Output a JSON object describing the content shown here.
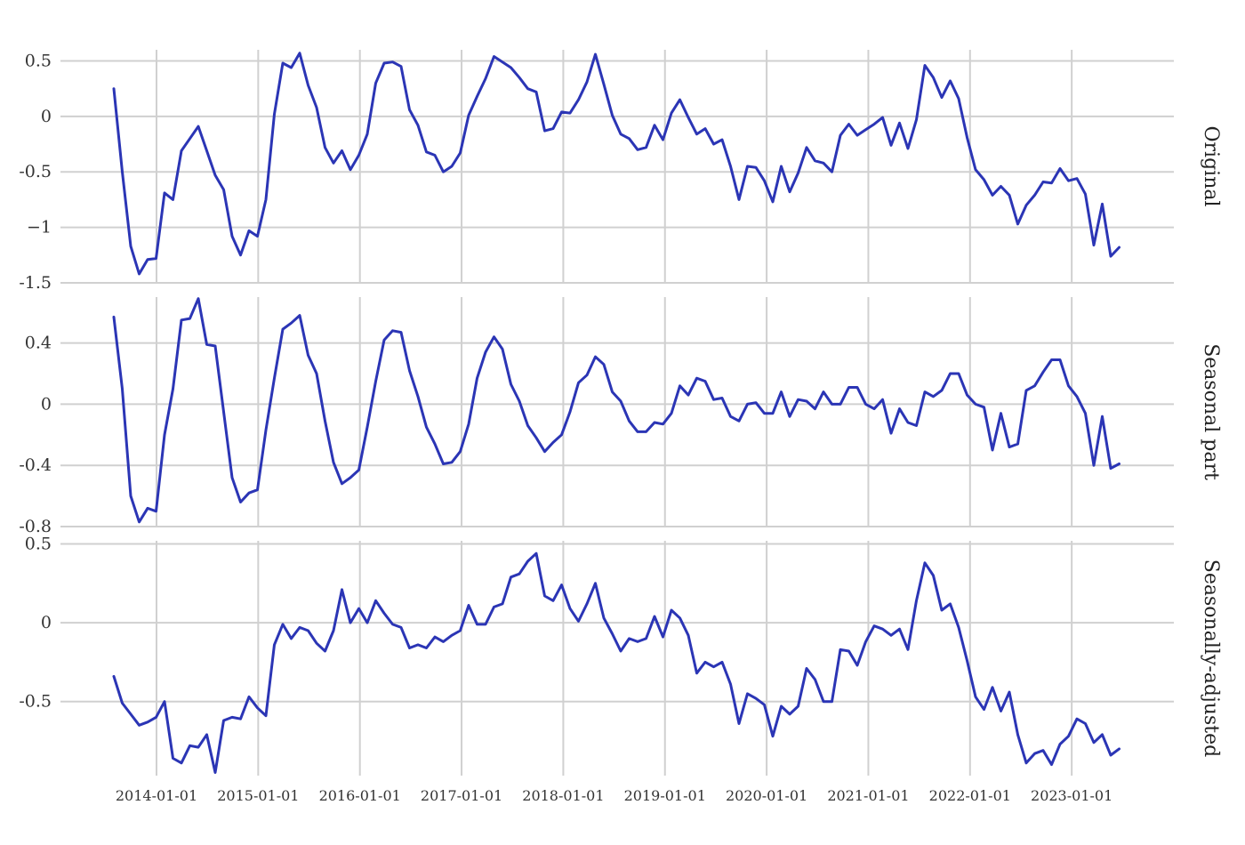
{
  "chart_data": {
    "type": "line",
    "colors": {
      "line": "#2b35b5",
      "grid": "#d0d0d0"
    },
    "grid": true,
    "x_start": "2013-08-01",
    "x_step": "1 month",
    "x_tick_labels": [
      "2014-01-01",
      "2015-01-01",
      "2016-01-01",
      "2017-01-01",
      "2018-01-01",
      "2019-01-01",
      "2020-01-01",
      "2021-01-01",
      "2022-01-01",
      "2023-01-01"
    ],
    "panels": [
      {
        "facet_label": "Original",
        "ylim": [
          -1.5,
          0.6
        ],
        "y_ticks": [
          0.5,
          0,
          -0.5,
          -1,
          -1.5
        ],
        "y_tick_labels": [
          "0.5",
          "0",
          "-0.5",
          "−1",
          "-1.5"
        ],
        "values": [
          0.25,
          -0.5,
          -1.17,
          -1.42,
          -1.29,
          -1.28,
          -0.69,
          -0.75,
          -0.31,
          -0.2,
          -0.09,
          -0.31,
          -0.53,
          -0.66,
          -1.08,
          -1.25,
          -1.03,
          -1.08,
          -0.75,
          0.02,
          0.48,
          0.44,
          0.57,
          0.28,
          0.08,
          -0.28,
          -0.42,
          -0.31,
          -0.48,
          -0.35,
          -0.16,
          0.3,
          0.48,
          0.49,
          0.45,
          0.06,
          -0.08,
          -0.32,
          -0.35,
          -0.5,
          -0.45,
          -0.33,
          0.01,
          0.18,
          0.34,
          0.54,
          0.49,
          0.44,
          0.35,
          0.25,
          0.22,
          -0.13,
          -0.11,
          0.04,
          0.03,
          0.15,
          0.31,
          0.56,
          0.29,
          0.01,
          -0.16,
          -0.2,
          -0.3,
          -0.28,
          -0.08,
          -0.21,
          0.03,
          0.15,
          -0.01,
          -0.16,
          -0.11,
          -0.25,
          -0.21,
          -0.45,
          -0.75,
          -0.45,
          -0.46,
          -0.58,
          -0.77,
          -0.45,
          -0.68,
          -0.51,
          -0.28,
          -0.4,
          -0.42,
          -0.5,
          -0.17,
          -0.07,
          -0.17,
          -0.12,
          -0.07,
          -0.01,
          -0.26,
          -0.06,
          -0.29,
          -0.03,
          0.46,
          0.35,
          0.17,
          0.32,
          0.16,
          -0.19,
          -0.48,
          -0.57,
          -0.71,
          -0.63,
          -0.71,
          -0.97,
          -0.8,
          -0.71,
          -0.59,
          -0.6,
          -0.47,
          -0.58,
          -0.56,
          -0.7,
          -1.16,
          -0.79,
          -1.26,
          -1.18
        ]
      },
      {
        "facet_label": "Seasonal part",
        "ylim": [
          -0.8,
          0.7
        ],
        "y_ticks": [
          0.4,
          0,
          -0.4,
          -0.8
        ],
        "y_tick_labels": [
          "0.4",
          "0",
          "-0.4",
          "-0.8"
        ],
        "values": [
          0.57,
          0.1,
          -0.6,
          -0.77,
          -0.68,
          -0.7,
          -0.2,
          0.1,
          0.55,
          0.56,
          0.69,
          0.39,
          0.38,
          -0.05,
          -0.48,
          -0.64,
          -0.58,
          -0.56,
          -0.17,
          0.17,
          0.49,
          0.53,
          0.58,
          0.32,
          0.2,
          -0.11,
          -0.38,
          -0.52,
          -0.48,
          -0.43,
          -0.15,
          0.15,
          0.42,
          0.48,
          0.47,
          0.22,
          0.05,
          -0.15,
          -0.26,
          -0.39,
          -0.38,
          -0.31,
          -0.13,
          0.17,
          0.34,
          0.44,
          0.36,
          0.13,
          0.02,
          -0.14,
          -0.22,
          -0.31,
          -0.25,
          -0.2,
          -0.05,
          0.14,
          0.19,
          0.31,
          0.26,
          0.08,
          0.02,
          -0.11,
          -0.18,
          -0.18,
          -0.12,
          -0.13,
          -0.06,
          0.12,
          0.06,
          0.17,
          0.15,
          0.03,
          0.04,
          -0.08,
          -0.11,
          0.0,
          0.01,
          -0.06,
          -0.06,
          0.08,
          -0.08,
          0.03,
          0.02,
          -0.03,
          0.08,
          0.0,
          0.0,
          0.11,
          0.11,
          0.0,
          -0.03,
          0.03,
          -0.19,
          -0.03,
          -0.12,
          -0.14,
          0.08,
          0.05,
          0.09,
          0.2,
          0.2,
          0.06,
          0.0,
          -0.02,
          -0.3,
          -0.06,
          -0.28,
          -0.26,
          0.09,
          0.12,
          0.21,
          0.29,
          0.29,
          0.12,
          0.05,
          -0.06,
          -0.4,
          -0.08,
          -0.42,
          -0.39
        ]
      },
      {
        "facet_label": "Seasonally-adjusted",
        "ylim": [
          -0.97,
          0.52
        ],
        "y_ticks": [
          0.5,
          0,
          -0.5
        ],
        "y_tick_labels": [
          "0.5",
          "0",
          "-0.5"
        ],
        "values": [
          -0.34,
          -0.51,
          -0.58,
          -0.65,
          -0.63,
          -0.6,
          -0.5,
          -0.86,
          -0.89,
          -0.78,
          -0.79,
          -0.71,
          -0.95,
          -0.62,
          -0.6,
          -0.61,
          -0.47,
          -0.54,
          -0.59,
          -0.14,
          -0.01,
          -0.1,
          -0.03,
          -0.05,
          -0.13,
          -0.18,
          -0.05,
          0.21,
          0.0,
          0.09,
          0.0,
          0.14,
          0.06,
          -0.01,
          -0.03,
          -0.16,
          -0.14,
          -0.16,
          -0.09,
          -0.12,
          -0.08,
          -0.05,
          0.11,
          -0.01,
          -0.01,
          0.1,
          0.12,
          0.29,
          0.31,
          0.39,
          0.44,
          0.17,
          0.14,
          0.24,
          0.09,
          0.01,
          0.12,
          0.25,
          0.03,
          -0.07,
          -0.18,
          -0.1,
          -0.12,
          -0.1,
          0.04,
          -0.09,
          0.08,
          0.03,
          -0.08,
          -0.32,
          -0.25,
          -0.28,
          -0.25,
          -0.39,
          -0.64,
          -0.45,
          -0.48,
          -0.52,
          -0.72,
          -0.53,
          -0.58,
          -0.53,
          -0.29,
          -0.36,
          -0.5,
          -0.5,
          -0.17,
          -0.18,
          -0.27,
          -0.12,
          -0.02,
          -0.04,
          -0.08,
          -0.04,
          -0.17,
          0.14,
          0.38,
          0.3,
          0.08,
          0.12,
          -0.03,
          -0.24,
          -0.47,
          -0.55,
          -0.41,
          -0.56,
          -0.44,
          -0.71,
          -0.89,
          -0.83,
          -0.81,
          -0.9,
          -0.77,
          -0.72,
          -0.61,
          -0.64,
          -0.76,
          -0.71,
          -0.84,
          -0.8
        ]
      }
    ]
  }
}
